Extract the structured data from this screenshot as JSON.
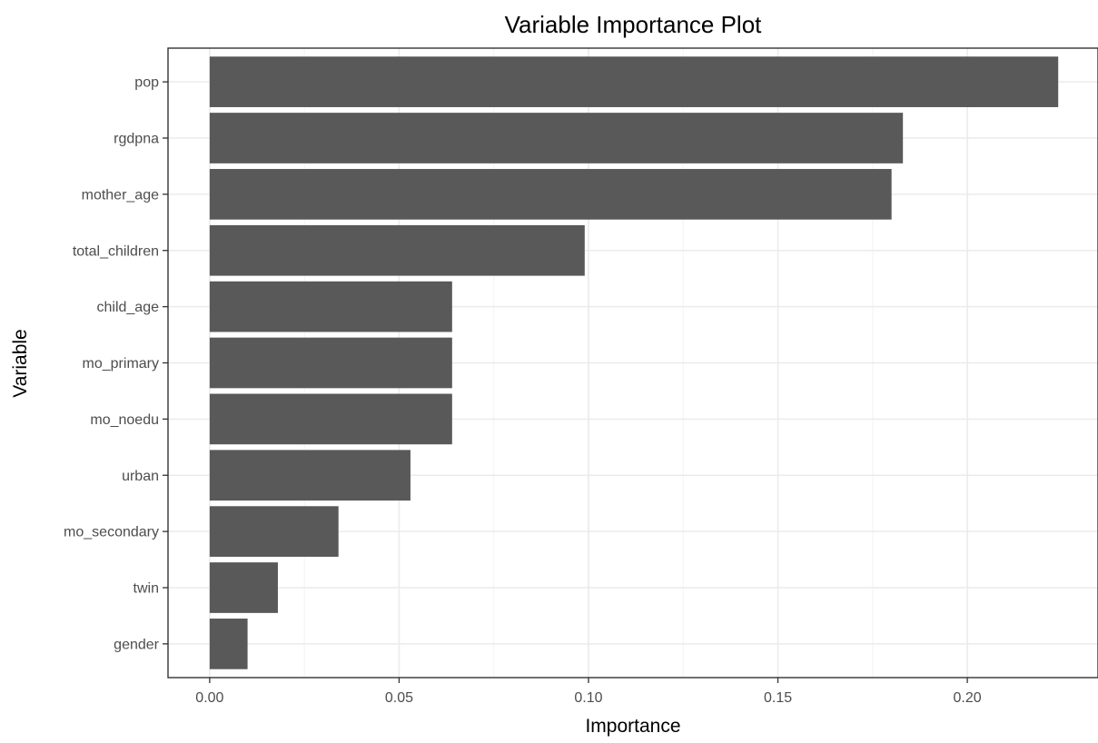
{
  "chart_data": {
    "type": "bar",
    "orientation": "horizontal",
    "title": "Variable Importance Plot",
    "xlabel": "Importance",
    "ylabel": "Variable",
    "categories": [
      "pop",
      "rgdpna",
      "mother_age",
      "total_children",
      "child_age",
      "mo_primary",
      "mo_noedu",
      "urban",
      "mo_secondary",
      "twin",
      "gender"
    ],
    "values": [
      0.224,
      0.183,
      0.18,
      0.099,
      0.064,
      0.064,
      0.064,
      0.053,
      0.034,
      0.018,
      0.01
    ],
    "xlim": [
      -0.011,
      0.2345
    ],
    "xticks": [
      0.0,
      0.05,
      0.1,
      0.15,
      0.2
    ],
    "xtick_labels": [
      "0.00",
      "0.05",
      "0.10",
      "0.15",
      "0.20"
    ],
    "grid": true,
    "theme": "bw",
    "bar_color": "#595959"
  }
}
